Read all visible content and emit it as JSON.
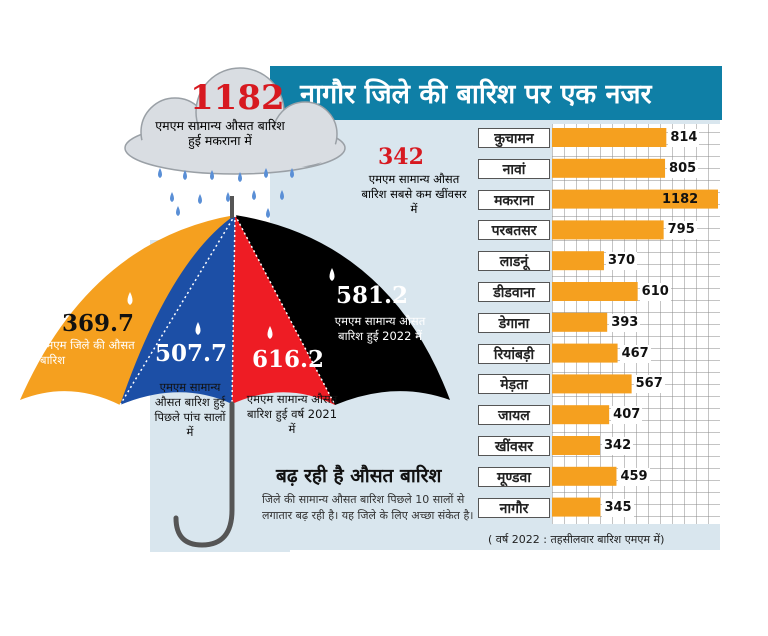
{
  "title": "नागौर जिले की बारिश पर एक नजर",
  "cloud": {
    "value": "1182",
    "note": "एमएम सामान्य औसत बारिश हुई मकराना में"
  },
  "lowest": {
    "value": "342",
    "note": "एमएम सामान्य औसत बारिश सबसे कम खींवसर में"
  },
  "umbrella": [
    {
      "value": "369.7",
      "note": "एमएम जिले की औसत बारिश",
      "color": "#f5a01f"
    },
    {
      "value": "507.7",
      "note": "एमएम सामान्य औसत बारिश हुई पिछले पांच सालों में",
      "color": "#1c4fa6"
    },
    {
      "value": "616.2",
      "note": "एमएम सामान्य औसत बारिश हुई वर्ष 2021 में",
      "color": "#ee1c24"
    },
    {
      "value": "581.2",
      "note": "एमएम सामान्य औसत बारिश हुई 2022 में",
      "color": "#000000"
    }
  ],
  "heading": "बढ़ रही है औसत बारिश",
  "body": "जिले की सामान्य औसत बारिश पिछले 10 सालों से लगातार बढ़ रही है। यह जिले के लिए अच्छा संकेत है।",
  "footnote": "( वर्ष 2022 : तहसीलवार बारिश एमएम में)",
  "chart_data": {
    "type": "bar",
    "orientation": "horizontal",
    "title": "नागौर जिले की बारिश पर एक नजर",
    "categories": [
      "कुचामन",
      "नावां",
      "मकराना",
      "परबतसर",
      "लाडनूं",
      "डीडवाना",
      "डेगाना",
      "रियांबड़ी",
      "मेड़ता",
      "जायल",
      "खींवसर",
      "मूण्डवा",
      "नागौर"
    ],
    "values": [
      814,
      805,
      1182,
      795,
      370,
      610,
      393,
      467,
      567,
      407,
      342,
      459,
      345
    ],
    "unit": "एमएम",
    "xlim": [
      0,
      1182
    ],
    "bar_color": "#f5a01f"
  }
}
